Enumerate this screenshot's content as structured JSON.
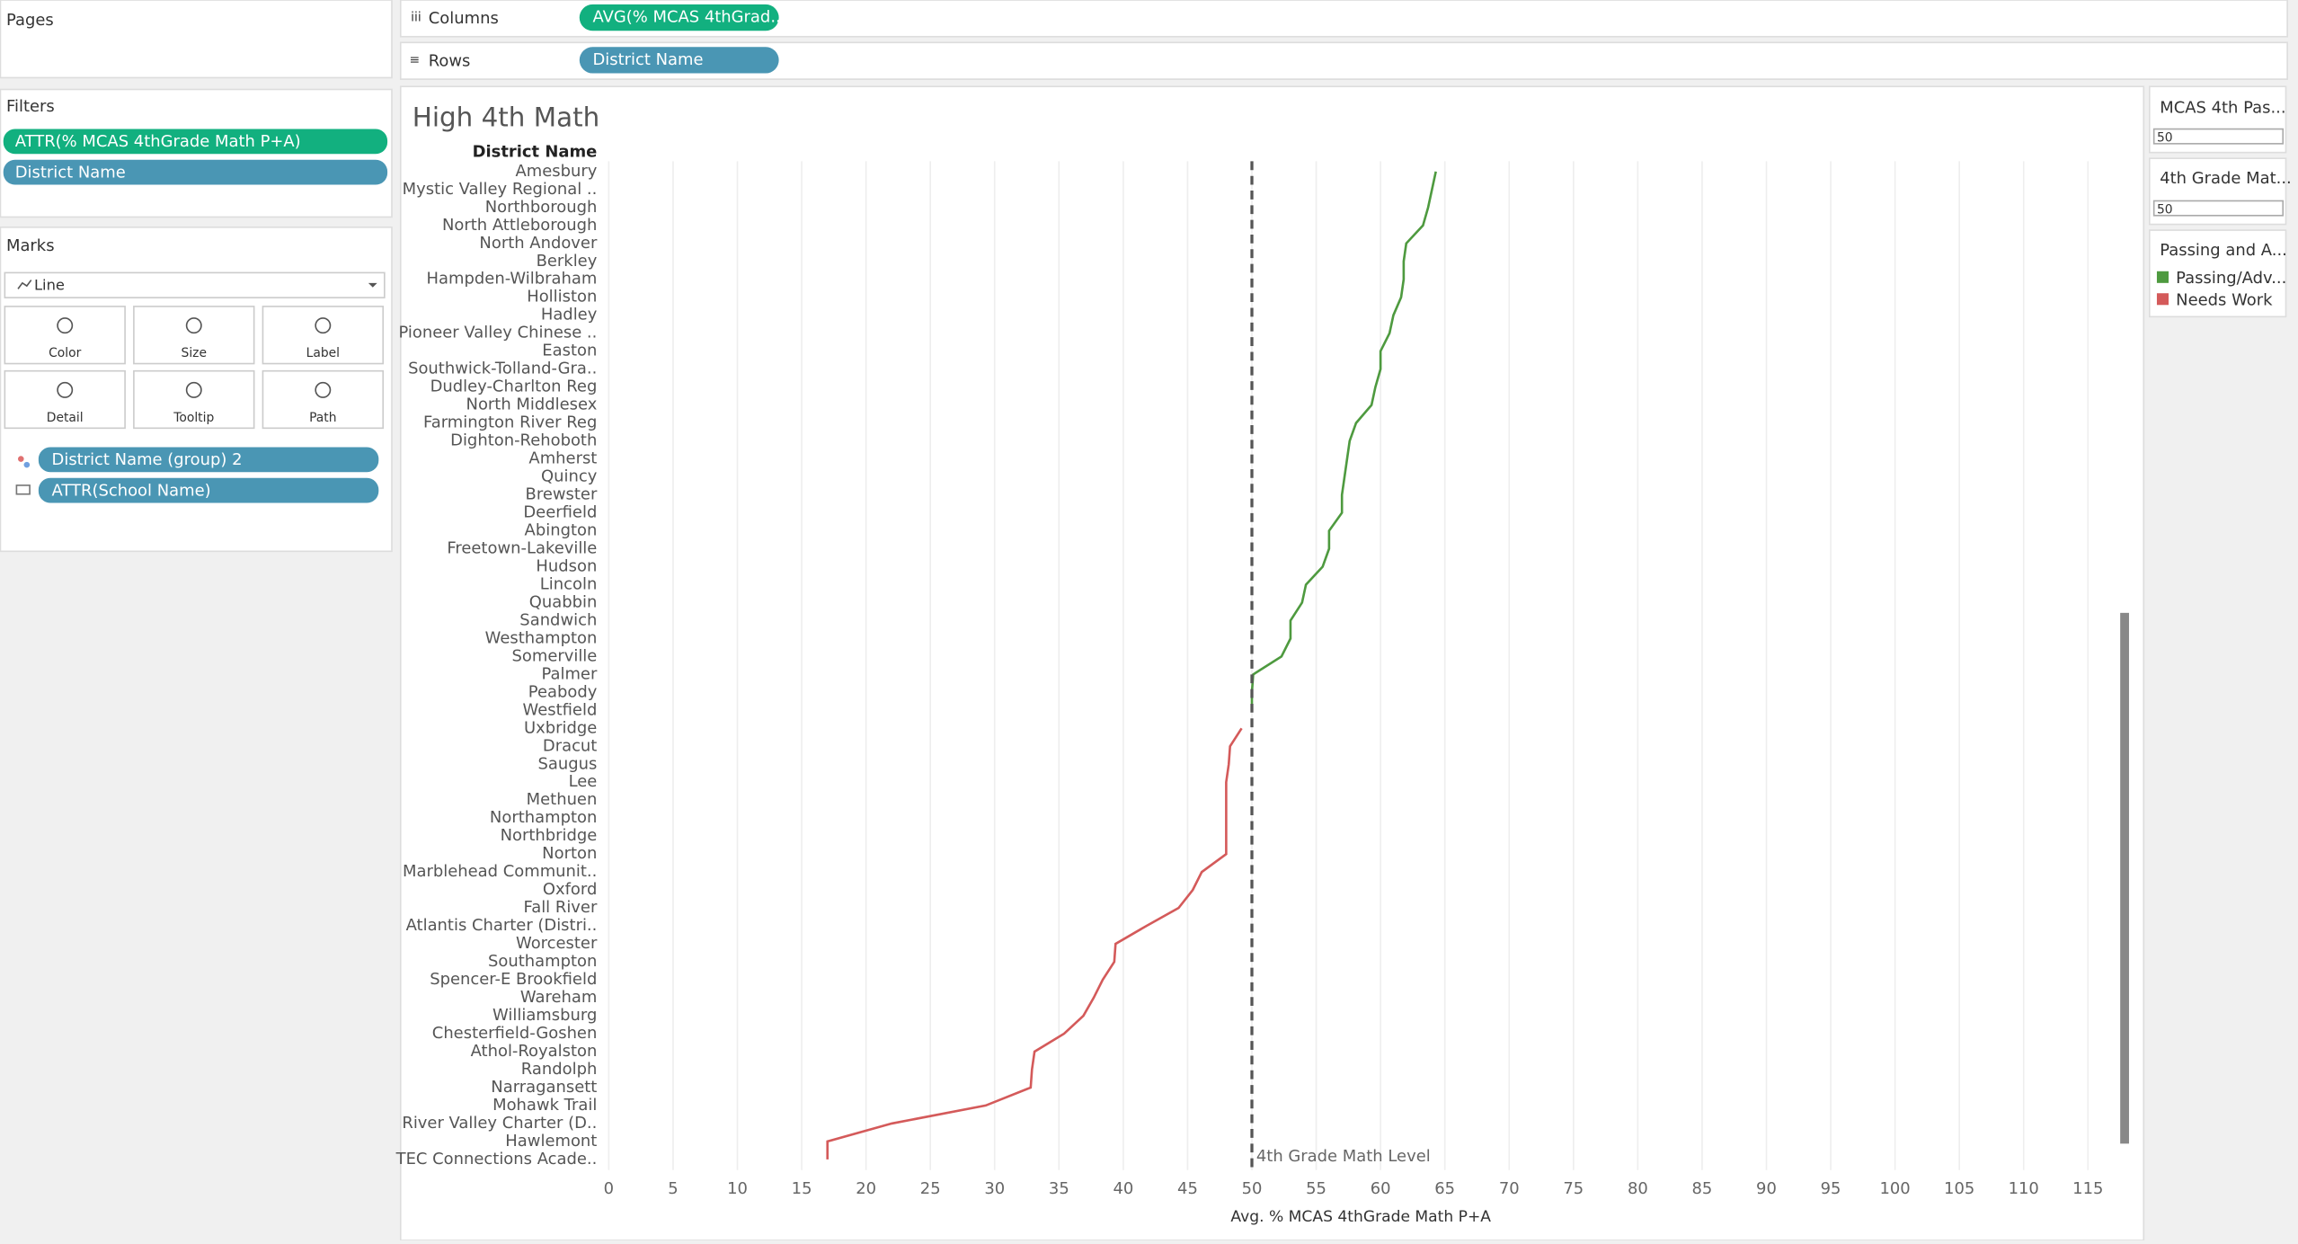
{
  "ui": {
    "pages": "Pages",
    "columns": {
      "label": "Columns",
      "pill": "AVG(% MCAS 4thGrad.."
    },
    "rows": {
      "label": "Rows",
      "pill": "District Name"
    },
    "filters": {
      "title": "Filters",
      "pills": [
        "ATTR(% MCAS 4thGrade Math P+A)",
        "District Name"
      ]
    },
    "marks": {
      "title": "Marks",
      "mark_type": "Line",
      "buttons": [
        "Color",
        "Size",
        "Label",
        "Detail",
        "Tooltip",
        "Path"
      ],
      "pills": [
        "District Name (group) 2",
        "ATTR(School Name)"
      ]
    },
    "parameters": [
      {
        "title": "MCAS 4th Pas...",
        "value": 50
      },
      {
        "title": "4th Grade Mat...",
        "value": 50
      }
    ],
    "legend_title": "Passing and A..."
  },
  "chart_data": {
    "type": "line",
    "orientation": "horizontal",
    "title": "High 4th Math",
    "y_axis_title": "District Name",
    "x_axis_title": "Avg. % MCAS 4thGrade Math P+A",
    "categories": [
      "Amesbury",
      "Mystic Valley Regional ..",
      "Northborough",
      "North Attleborough",
      "North Andover",
      "Berkley",
      "Hampden-Wilbraham",
      "Holliston",
      "Hadley",
      "Pioneer Valley Chinese ..",
      "Easton",
      "Southwick-Tolland-Gra..",
      "Dudley-Charlton Reg",
      "North Middlesex",
      "Farmington River Reg",
      "Dighton-Rehoboth",
      "Amherst",
      "Quincy",
      "Brewster",
      "Deerfield",
      "Abington",
      "Freetown-Lakeville",
      "Hudson",
      "Lincoln",
      "Quabbin",
      "Sandwich",
      "Westhampton",
      "Somerville",
      "Palmer",
      "Peabody",
      "Westfield",
      "Uxbridge",
      "Dracut",
      "Saugus",
      "Lee",
      "Methuen",
      "Northampton",
      "Northbridge",
      "Norton",
      "Marblehead Communit..",
      "Oxford",
      "Fall River",
      "Atlantis Charter (Distri..",
      "Worcester",
      "Southampton",
      "Spencer-E Brookfield",
      "Wareham",
      "Williamsburg",
      "Chesterfield-Goshen",
      "Athol-Royalston",
      "Randolph",
      "Narragansett",
      "Mohawk Trail",
      "River Valley Charter (D..",
      "Hawlemont",
      "TEC Connections Acade.."
    ],
    "series": [
      {
        "name": "Passing/Adv...",
        "color": "#4e9a3f",
        "values": [
          64.3,
          64.0,
          63.7,
          63.3,
          62.0,
          61.8,
          61.8,
          61.6,
          61.0,
          60.7,
          60.0,
          60.0,
          59.6,
          59.3,
          58.1,
          57.6,
          57.4,
          57.2,
          57.0,
          57.0,
          56.0,
          56.0,
          55.5,
          54.2,
          53.9,
          53.0,
          53.0,
          52.3,
          50.1,
          50.0,
          50.0,
          null,
          null,
          null,
          null,
          null,
          null,
          null,
          null,
          null,
          null,
          null,
          null,
          null,
          null,
          null,
          null,
          null,
          null,
          null,
          null,
          null,
          null,
          null,
          null,
          null
        ]
      },
      {
        "name": "Needs Work",
        "color": "#d45a5a",
        "values": [
          null,
          null,
          null,
          null,
          null,
          null,
          null,
          null,
          null,
          null,
          null,
          null,
          null,
          null,
          null,
          null,
          null,
          null,
          null,
          null,
          null,
          null,
          null,
          null,
          null,
          null,
          null,
          null,
          null,
          null,
          null,
          49.2,
          48.3,
          48.2,
          48.0,
          48.0,
          48.0,
          48.0,
          48.0,
          46.1,
          45.4,
          44.3,
          41.8,
          39.4,
          39.3,
          38.4,
          37.7,
          36.9,
          35.4,
          33.1,
          32.9,
          32.8,
          29.3,
          22.0,
          17.0,
          17.0
        ]
      }
    ],
    "reference_line": {
      "value": 50,
      "label": "4th Grade Math Level"
    },
    "xlim": [
      0,
      117
    ],
    "xticks": [
      0,
      5,
      10,
      15,
      20,
      25,
      30,
      35,
      40,
      45,
      50,
      55,
      60,
      65,
      70,
      75,
      80,
      85,
      90,
      95,
      100,
      105,
      110,
      115
    ],
    "grid": true
  }
}
